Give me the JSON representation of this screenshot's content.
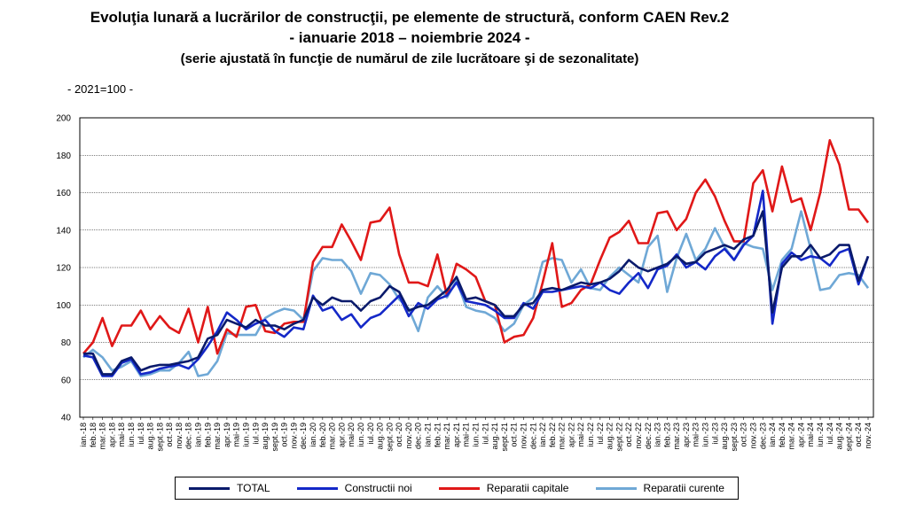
{
  "title_line1": "Evoluţia lunară a lucrărilor de construcţii, pe elemente de structură, conform CAEN Rev.2",
  "title_line2": "- ianuarie 2018 – noiembrie 2024 -",
  "title_line3": "(serie ajustată în funcţie de numărul de zile lucrătoare şi de sezonalitate)",
  "base_note": "- 2021=100 -",
  "chart_data": {
    "type": "line",
    "xlabel": "",
    "ylabel": "",
    "ylim": [
      40,
      200
    ],
    "yticks": [
      40,
      60,
      80,
      100,
      120,
      140,
      160,
      180,
      200
    ],
    "grid": true,
    "legend_position": "bottom",
    "categories": [
      "ian.-18",
      "feb.-18",
      "mar.-18",
      "apr.-18",
      "mai-18",
      "iun.-18",
      "iul.-18",
      "aug.-18",
      "sept.-18",
      "oct.-18",
      "nov.-18",
      "dec.-18",
      "ian.-19",
      "feb.-19",
      "mar.-19",
      "apr.-19",
      "mai-19",
      "iun.-19",
      "iul.-19",
      "aug.-19",
      "sept.-19",
      "oct.-19",
      "nov.-19",
      "dec.-19",
      "ian.-20",
      "feb.-20",
      "mar.-20",
      "apr.-20",
      "mai-20",
      "iun.-20",
      "iul.-20",
      "aug.-20",
      "sept.-20",
      "oct.-20",
      "nov.-20",
      "dec.-20",
      "ian.-21",
      "feb.-21",
      "mar.-21",
      "apr.-21",
      "mai-21",
      "iun.-21",
      "iul.-21",
      "aug.-21",
      "sept.-21",
      "oct.-21",
      "nov.-21",
      "dec.-21",
      "ian.-22",
      "feb.-22",
      "mar.-22",
      "apr.-22",
      "mai-22",
      "iun.-22",
      "iul.-22",
      "aug.-22",
      "sept.-22",
      "oct.-22",
      "nov.-22",
      "dec.-22",
      "ian.-23",
      "feb.-23",
      "mar.-23",
      "apr.-23",
      "mai-23",
      "iun.-23",
      "iul.-23",
      "aug.-23",
      "sept.-23",
      "oct.-23",
      "nov.-23",
      "dec.-23",
      "ian.-24",
      "feb.-24",
      "mar.-24",
      "apr.-24",
      "mai-24",
      "iun.-24",
      "iul.-24",
      "aug.-24",
      "sept.-24",
      "oct.-24",
      "nov.-24"
    ],
    "series": [
      {
        "name": "TOTAL",
        "color": "#0a1a6b",
        "values": [
          74,
          74,
          63,
          63,
          70,
          72,
          65,
          67,
          68,
          68,
          69,
          70,
          72,
          82,
          84,
          92,
          90,
          88,
          92,
          89,
          89,
          87,
          90,
          92,
          104,
          100,
          104,
          102,
          102,
          97,
          102,
          104,
          110,
          107,
          97,
          99,
          100,
          104,
          108,
          115,
          103,
          104,
          102,
          100,
          94,
          94,
          100,
          101,
          108,
          109,
          108,
          110,
          112,
          111,
          112,
          114,
          118,
          124,
          120,
          118,
          120,
          122,
          126,
          122,
          123,
          128,
          130,
          132,
          130,
          135,
          137,
          150,
          96,
          120,
          126,
          126,
          132,
          125,
          127,
          132,
          132,
          113,
          126
        ]
      },
      {
        "name": "Constructii noi",
        "color": "#1428c8",
        "values": [
          73,
          72,
          62,
          62,
          69,
          71,
          63,
          64,
          66,
          67,
          68,
          66,
          71,
          78,
          86,
          96,
          92,
          87,
          90,
          92,
          86,
          83,
          88,
          87,
          105,
          97,
          99,
          92,
          95,
          88,
          93,
          95,
          100,
          105,
          94,
          101,
          98,
          103,
          105,
          112,
          102,
          101,
          100,
          97,
          93,
          93,
          101,
          98,
          107,
          107,
          108,
          109,
          110,
          109,
          112,
          108,
          106,
          112,
          117,
          109,
          119,
          121,
          127,
          120,
          123,
          119,
          126,
          130,
          124,
          132,
          137,
          161,
          90,
          122,
          128,
          124,
          126,
          125,
          121,
          128,
          130,
          111,
          126
        ]
      },
      {
        "name": "Reparatii capitale",
        "color": "#e01818",
        "values": [
          74,
          80,
          93,
          78,
          89,
          89,
          97,
          87,
          94,
          88,
          85,
          98,
          80,
          99,
          74,
          87,
          83,
          99,
          100,
          86,
          85,
          90,
          91,
          91,
          123,
          131,
          131,
          143,
          134,
          124,
          144,
          145,
          152,
          127,
          112,
          112,
          110,
          127,
          105,
          122,
          119,
          115,
          102,
          100,
          80,
          83,
          84,
          93,
          112,
          133,
          99,
          101,
          108,
          111,
          124,
          136,
          139,
          145,
          133,
          133,
          149,
          150,
          140,
          146,
          160,
          167,
          158,
          145,
          134,
          134,
          165,
          172,
          150,
          174,
          155,
          157,
          140,
          160,
          188,
          175,
          151,
          151,
          144
        ]
      },
      {
        "name": "Reparatii curente",
        "color": "#6fa8d6",
        "values": [
          72,
          76,
          72,
          65,
          67,
          70,
          62,
          63,
          65,
          65,
          69,
          75,
          62,
          63,
          70,
          85,
          84,
          84,
          84,
          93,
          96,
          98,
          97,
          92,
          118,
          125,
          124,
          124,
          118,
          106,
          117,
          116,
          111,
          103,
          98,
          86,
          104,
          110,
          104,
          113,
          99,
          97,
          96,
          93,
          86,
          90,
          100,
          104,
          123,
          125,
          124,
          112,
          119,
          109,
          108,
          115,
          120,
          116,
          112,
          131,
          137,
          107,
          125,
          138,
          124,
          130,
          141,
          131,
          124,
          133,
          131,
          130,
          108,
          124,
          130,
          150,
          130,
          108,
          109,
          116,
          117,
          116,
          109
        ]
      }
    ]
  },
  "legend": [
    {
      "label": "TOTAL",
      "color": "#0a1a6b"
    },
    {
      "label": "Constructii noi",
      "color": "#1428c8"
    },
    {
      "label": "Reparatii capitale",
      "color": "#e01818"
    },
    {
      "label": "Reparatii curente",
      "color": "#6fa8d6"
    }
  ]
}
